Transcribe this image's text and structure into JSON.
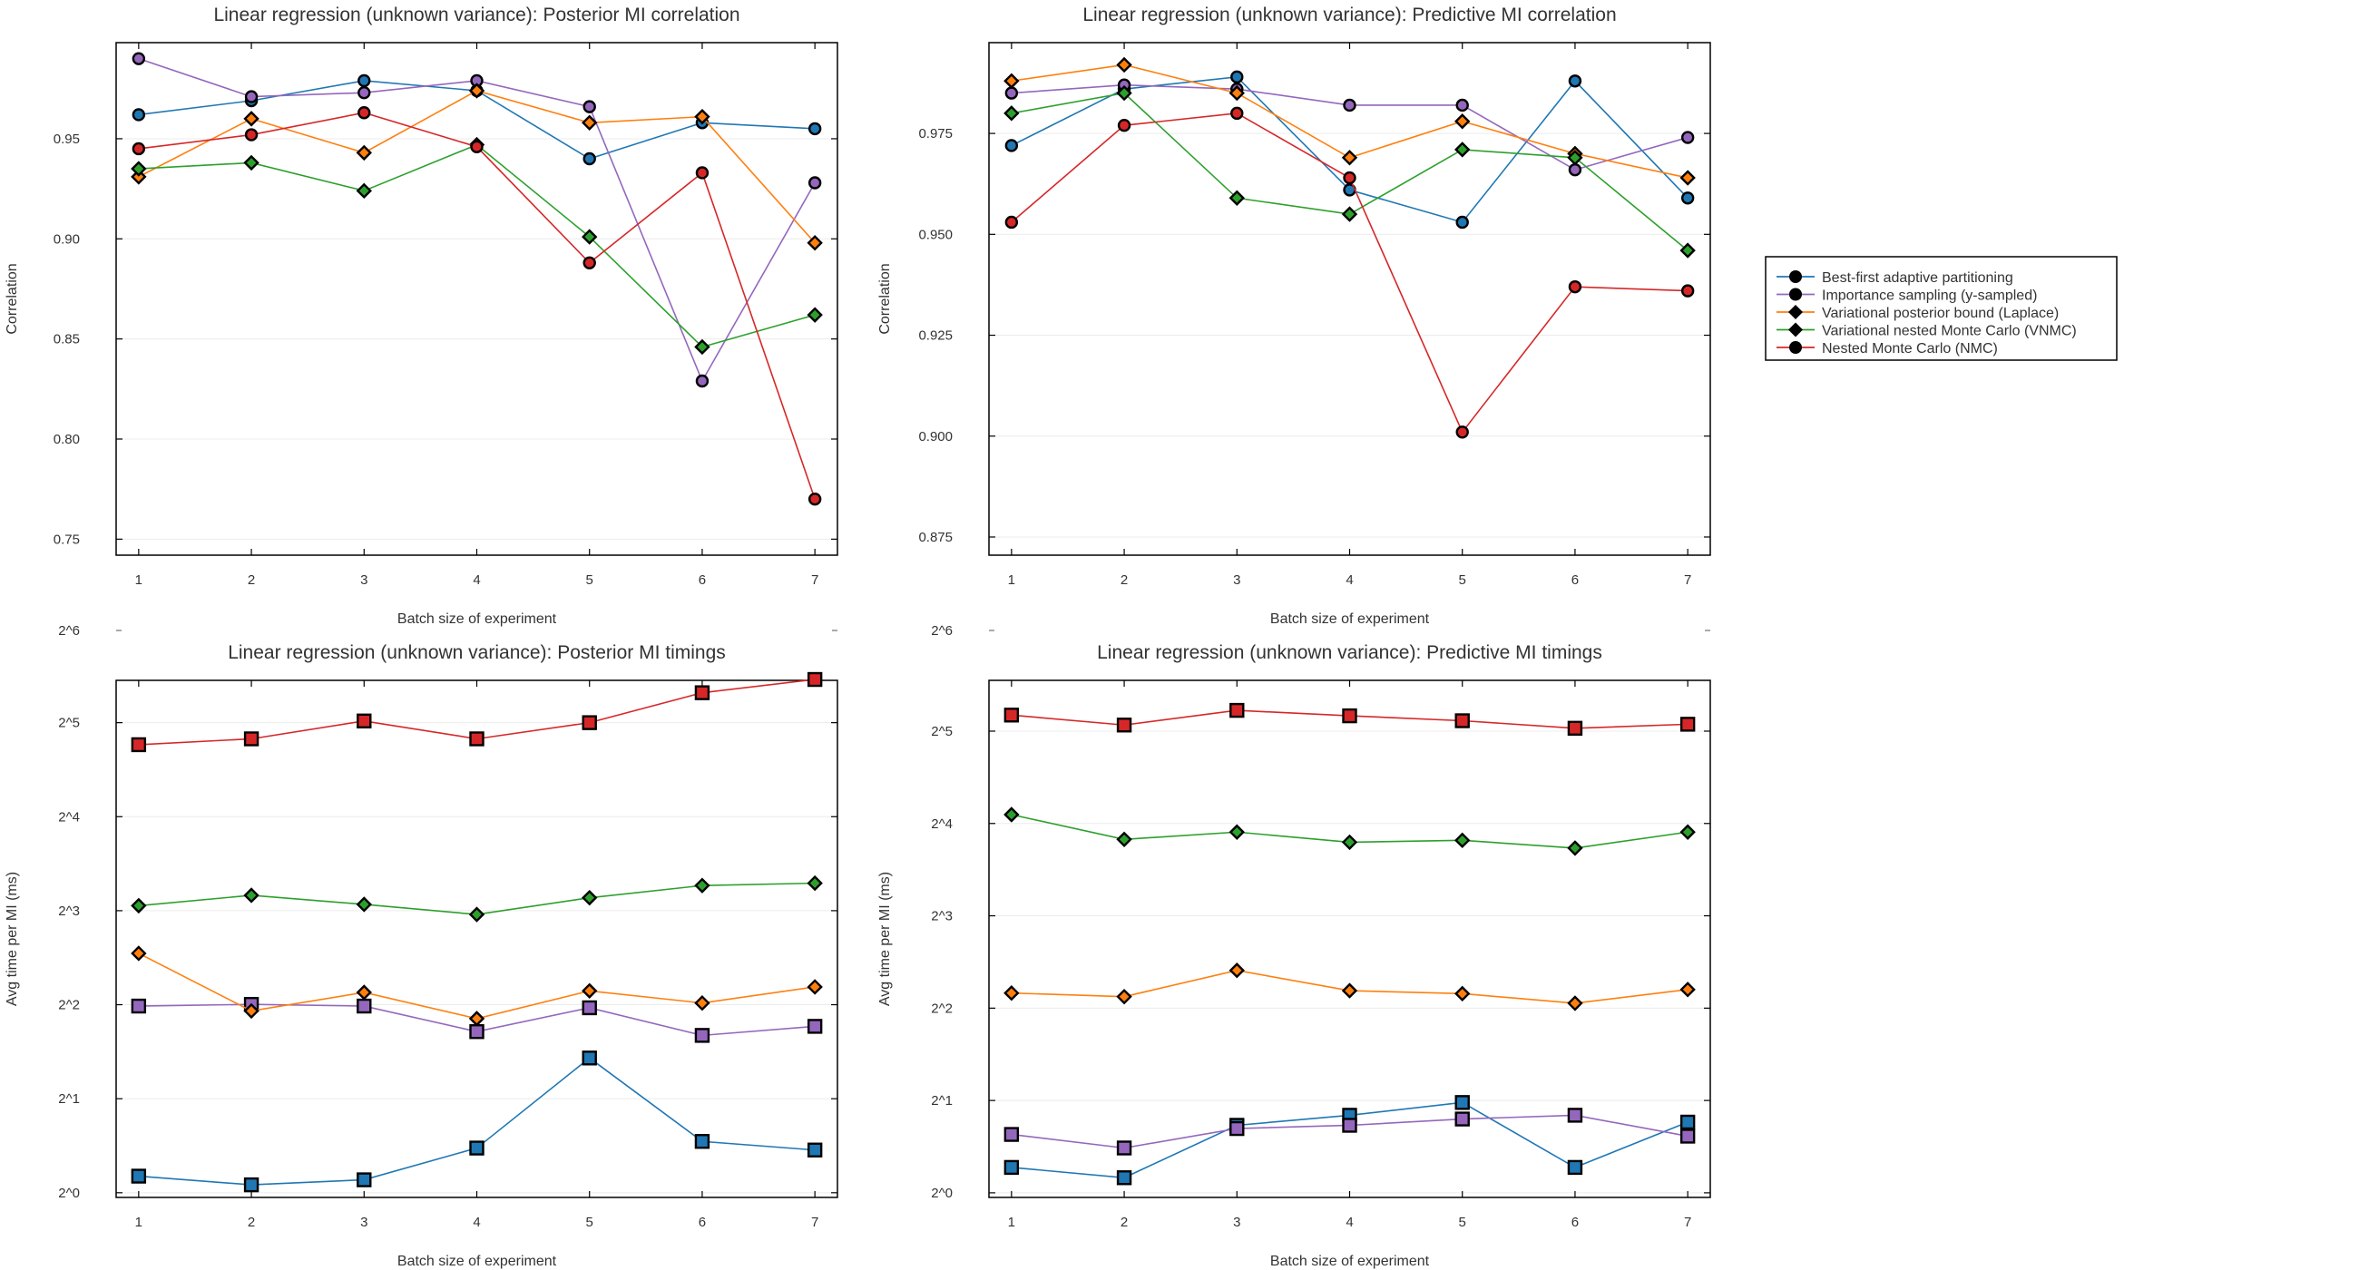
{
  "figure": {
    "legend": {
      "placement": "right",
      "entries": [
        {
          "label": "Best-first adaptive partitioning",
          "color": "#1f77b4"
        },
        {
          "label": "Importance sampling (y-sampled)",
          "color": "#9467bd"
        },
        {
          "label": "Variational posterior bound (Laplace)",
          "color": "#ff7f0e"
        },
        {
          "label": "Variational nested Monte Carlo (VNMC)",
          "color": "#2ca02c"
        },
        {
          "label": "Nested Monte Carlo (NMC)",
          "color": "#d62728"
        }
      ]
    }
  },
  "chart_data": [
    {
      "type": "line",
      "title": "Linear regression (unknown variance): Posterior MI correlation",
      "xlabel": "Batch size of experiment",
      "ylabel": "Correlation",
      "x": [
        1,
        2,
        3,
        4,
        5,
        6,
        7
      ],
      "xlim": [
        0.8,
        7.2
      ],
      "ylim": [
        0.742,
        0.998
      ],
      "yscale": "linear",
      "y_ticks": [
        0.75,
        0.8,
        0.85,
        0.9,
        0.95
      ],
      "y_tick_labels": [
        "0.75",
        "0.80",
        "0.85",
        "0.90",
        "0.95"
      ],
      "x_ticks": [
        1,
        2,
        3,
        4,
        5,
        6,
        7
      ],
      "grid": true,
      "series": [
        {
          "name": "Best-first adaptive partitioning",
          "color": "#1f77b4",
          "marker": "circle",
          "values": [
            0.962,
            0.969,
            0.979,
            0.974,
            0.94,
            0.958,
            0.955
          ]
        },
        {
          "name": "Importance sampling (y-sampled)",
          "color": "#9467bd",
          "marker": "circle",
          "values": [
            0.99,
            0.971,
            0.973,
            0.979,
            0.966,
            0.829,
            0.928
          ]
        },
        {
          "name": "Variational posterior bound (Laplace)",
          "color": "#ff7f0e",
          "marker": "diamond",
          "values": [
            0.931,
            0.96,
            0.943,
            0.974,
            0.958,
            0.961,
            0.898
          ]
        },
        {
          "name": "Variational nested Monte Carlo (VNMC)",
          "color": "#2ca02c",
          "marker": "diamond",
          "values": [
            0.935,
            0.938,
            0.924,
            0.947,
            0.901,
            0.846,
            0.862
          ]
        },
        {
          "name": "Nested Monte Carlo (NMC)",
          "color": "#d62728",
          "marker": "circle",
          "values": [
            0.945,
            0.952,
            0.963,
            0.946,
            0.888,
            0.933,
            0.77
          ]
        }
      ]
    },
    {
      "type": "line",
      "title": "Linear regression (unknown variance): Predictive MI correlation",
      "xlabel": "Batch size of experiment",
      "ylabel": "Correlation",
      "x": [
        1,
        2,
        3,
        4,
        5,
        6,
        7
      ],
      "xlim": [
        0.8,
        7.2
      ],
      "ylim": [
        0.8705,
        0.9975
      ],
      "yscale": "linear",
      "y_ticks": [
        0.875,
        0.9,
        0.925,
        0.95,
        0.975
      ],
      "y_tick_labels": [
        "0.875",
        "0.900",
        "0.925",
        "0.950",
        "0.975"
      ],
      "x_ticks": [
        1,
        2,
        3,
        4,
        5,
        6,
        7
      ],
      "grid": true,
      "series": [
        {
          "name": "Best-first adaptive partitioning",
          "color": "#1f77b4",
          "marker": "circle",
          "values": [
            0.972,
            0.986,
            0.989,
            0.961,
            0.953,
            0.988,
            0.959
          ]
        },
        {
          "name": "Importance sampling (y-sampled)",
          "color": "#9467bd",
          "marker": "circle",
          "values": [
            0.985,
            0.987,
            0.986,
            0.982,
            0.982,
            0.966,
            0.974
          ]
        },
        {
          "name": "Variational posterior bound (Laplace)",
          "color": "#ff7f0e",
          "marker": "diamond",
          "values": [
            0.988,
            0.992,
            0.985,
            0.969,
            0.978,
            0.97,
            0.964
          ]
        },
        {
          "name": "Variational nested Monte Carlo (VNMC)",
          "color": "#2ca02c",
          "marker": "diamond",
          "values": [
            0.98,
            0.985,
            0.959,
            0.955,
            0.971,
            0.969,
            0.946
          ]
        },
        {
          "name": "Nested Monte Carlo (NMC)",
          "color": "#d62728",
          "marker": "circle",
          "values": [
            0.953,
            0.977,
            0.98,
            0.964,
            0.901,
            0.937,
            0.936
          ]
        }
      ]
    },
    {
      "type": "line",
      "title": "Linear regression (unknown variance): Posterior MI timings",
      "xlabel": "Batch size of experiment",
      "ylabel": "Avg time per MI (ms)",
      "x": [
        1,
        2,
        3,
        4,
        5,
        6,
        7
      ],
      "xlim": [
        0.8,
        7.2
      ],
      "yscale": "log2",
      "ylim_exponent": [
        -0.05,
        5.45
      ],
      "y_ticks_exponent": [
        0,
        1,
        2,
        3,
        4,
        5
      ],
      "y_tick_labels": [
        "2^0",
        "2^1",
        "2^2",
        "2^3",
        "2^4",
        "2^5"
      ],
      "outside_label": "2^6",
      "x_ticks": [
        1,
        2,
        3,
        4,
        5,
        6,
        7
      ],
      "grid": true,
      "series": [
        {
          "name": "Best-first adaptive partitioning",
          "color": "#1f77b4",
          "marker": "square",
          "values": [
            1.13,
            1.06,
            1.1,
            1.39,
            2.7,
            1.46,
            1.37
          ]
        },
        {
          "name": "Importance sampling (y-sampled)",
          "color": "#9467bd",
          "marker": "square",
          "values": [
            3.96,
            4.01,
            3.96,
            3.28,
            3.91,
            3.19,
            3.41
          ]
        },
        {
          "name": "Variational posterior bound (Laplace)",
          "color": "#ff7f0e",
          "marker": "diamond",
          "values": [
            5.84,
            3.82,
            4.38,
            3.61,
            4.43,
            4.05,
            4.56
          ]
        },
        {
          "name": "Variational nested Monte Carlo (VNMC)",
          "color": "#2ca02c",
          "marker": "diamond",
          "values": [
            8.3,
            8.96,
            8.38,
            7.78,
            8.8,
            9.63,
            9.8
          ]
        },
        {
          "name": "Nested Monte Carlo (NMC)",
          "color": "#d62728",
          "marker": "square",
          "values": [
            27.2,
            28.4,
            32.4,
            28.4,
            32.0,
            39.9,
            44.0
          ]
        }
      ]
    },
    {
      "type": "line",
      "title": "Linear regression (unknown variance): Predictive MI timings",
      "xlabel": "Batch size of experiment",
      "ylabel": "Avg time per MI (ms)",
      "x": [
        1,
        2,
        3,
        4,
        5,
        6,
        7
      ],
      "xlim": [
        0.8,
        7.2
      ],
      "yscale": "log2",
      "ylim_exponent": [
        -0.05,
        5.55
      ],
      "y_ticks_exponent": [
        0,
        1,
        2,
        3,
        4,
        5
      ],
      "y_tick_labels": [
        "2^0",
        "2^1",
        "2^2",
        "2^3",
        "2^4",
        "2^5"
      ],
      "outside_label": "2^6",
      "x_ticks": [
        1,
        2,
        3,
        4,
        5,
        6,
        7
      ],
      "grid": true,
      "series": [
        {
          "name": "Best-first adaptive partitioning",
          "color": "#1f77b4",
          "marker": "square",
          "values": [
            1.21,
            1.12,
            1.66,
            1.79,
            1.97,
            1.21,
            1.7
          ]
        },
        {
          "name": "Importance sampling (y-sampled)",
          "color": "#9467bd",
          "marker": "square",
          "values": [
            1.55,
            1.4,
            1.62,
            1.66,
            1.74,
            1.79,
            1.53
          ]
        },
        {
          "name": "Variational posterior bound (Laplace)",
          "color": "#ff7f0e",
          "marker": "diamond",
          "values": [
            4.48,
            4.36,
            5.31,
            4.56,
            4.46,
            4.15,
            4.6
          ]
        },
        {
          "name": "Variational nested Monte Carlo (VNMC)",
          "color": "#2ca02c",
          "marker": "diamond",
          "values": [
            17.1,
            14.2,
            15.0,
            13.9,
            14.1,
            13.3,
            15.0
          ]
        },
        {
          "name": "Nested Monte Carlo (NMC)",
          "color": "#d62728",
          "marker": "square",
          "values": [
            36.1,
            33.5,
            37.4,
            35.9,
            34.6,
            32.7,
            33.7
          ]
        }
      ]
    }
  ]
}
